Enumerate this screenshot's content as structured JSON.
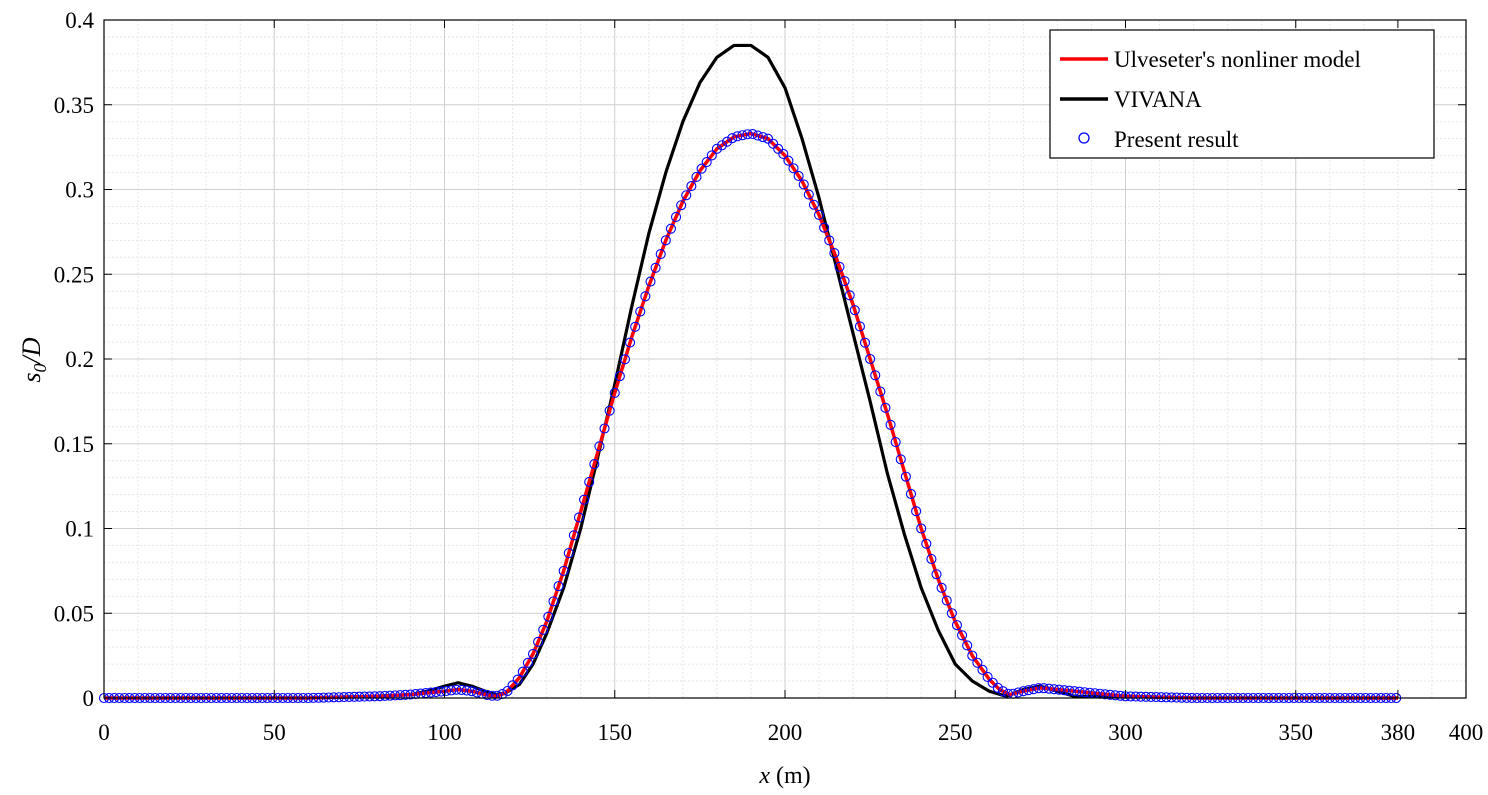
{
  "chart_data": {
    "type": "line",
    "xlabel_var": "x",
    "xlabel_unit": " (m)",
    "ylabel_main": "s",
    "ylabel_sub": "0",
    "ylabel_rest": "/D",
    "xlim": [
      0,
      400
    ],
    "ylim": [
      0,
      0.4
    ],
    "xticks": [
      0,
      50,
      100,
      150,
      200,
      250,
      300,
      350,
      380,
      400
    ],
    "xtick_labels": [
      "0",
      "50",
      "100",
      "150",
      "200",
      "250",
      "300",
      "350",
      "380",
      "400"
    ],
    "yticks": [
      0,
      0.05,
      0.1,
      0.15,
      0.2,
      0.25,
      0.3,
      0.35,
      0.4
    ],
    "ytick_labels": [
      "0",
      "0.05",
      "0.1",
      "0.15",
      "0.2",
      "0.25",
      "0.3",
      "0.35",
      "0.4"
    ],
    "grid": "major and minor",
    "legend_position": "top-right",
    "series": [
      {
        "name": "Ulveseter's nonliner model",
        "style": "line",
        "color": "#ff0000",
        "x": [
          0,
          20,
          40,
          60,
          80,
          90,
          95,
          100,
          104,
          108,
          112,
          115,
          118,
          122,
          126,
          130,
          135,
          140,
          145,
          150,
          155,
          160,
          165,
          170,
          175,
          180,
          185,
          190,
          195,
          200,
          205,
          210,
          215,
          220,
          225,
          230,
          235,
          240,
          245,
          250,
          255,
          260,
          263,
          266,
          270,
          275,
          280,
          290,
          300,
          320,
          340,
          360,
          380
        ],
        "y": [
          0,
          0,
          0,
          0,
          0.001,
          0.002,
          0.003,
          0.004,
          0.005,
          0.004,
          0.002,
          0.001,
          0.003,
          0.012,
          0.026,
          0.045,
          0.075,
          0.11,
          0.145,
          0.18,
          0.213,
          0.243,
          0.27,
          0.293,
          0.311,
          0.324,
          0.331,
          0.333,
          0.33,
          0.32,
          0.305,
          0.285,
          0.26,
          0.232,
          0.2,
          0.168,
          0.134,
          0.1,
          0.07,
          0.045,
          0.025,
          0.011,
          0.005,
          0.002,
          0.004,
          0.006,
          0.005,
          0.003,
          0.001,
          0,
          0,
          0,
          0
        ]
      },
      {
        "name": "VIVANA",
        "style": "line",
        "color": "#000000",
        "x": [
          0,
          20,
          40,
          60,
          80,
          90,
          95,
          100,
          104,
          108,
          112,
          115,
          118,
          122,
          126,
          130,
          135,
          140,
          145,
          150,
          155,
          160,
          165,
          170,
          175,
          180,
          185,
          190,
          195,
          200,
          205,
          210,
          215,
          220,
          225,
          230,
          235,
          240,
          245,
          250,
          255,
          260,
          265,
          270,
          275,
          280,
          285,
          290,
          300,
          320,
          340,
          360,
          380
        ],
        "y": [
          0,
          0,
          0,
          0,
          0.001,
          0.002,
          0.004,
          0.007,
          0.009,
          0.007,
          0.004,
          0.002,
          0.003,
          0.008,
          0.02,
          0.038,
          0.065,
          0.1,
          0.142,
          0.185,
          0.231,
          0.274,
          0.31,
          0.34,
          0.363,
          0.378,
          0.385,
          0.385,
          0.378,
          0.36,
          0.33,
          0.295,
          0.255,
          0.215,
          0.175,
          0.133,
          0.097,
          0.065,
          0.04,
          0.02,
          0.01,
          0.004,
          0.001,
          0.005,
          0.007,
          0.004,
          0.001,
          0.001,
          0.001,
          0,
          0,
          0,
          0
        ]
      },
      {
        "name": "Present result",
        "style": "markers",
        "marker": "circle-open",
        "color": "#0000ff",
        "x_start": 0,
        "x_end": 380,
        "x_step": 1.5
      }
    ]
  }
}
